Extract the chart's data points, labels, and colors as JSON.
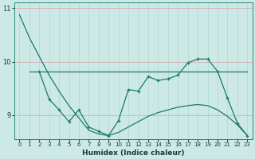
{
  "xlabel": "Humidex (Indice chaleur)",
  "bg_color": "#cce9e5",
  "line_color": "#1a7a6e",
  "vgrid_color": "#aed8d4",
  "hgrid_color": "#d4a8a8",
  "xlim": [
    -0.5,
    23.5
  ],
  "ylim": [
    8.55,
    11.1
  ],
  "yticks": [
    9,
    10,
    11
  ],
  "xticks": [
    0,
    1,
    2,
    3,
    4,
    5,
    6,
    7,
    8,
    9,
    10,
    11,
    12,
    13,
    14,
    15,
    16,
    17,
    18,
    19,
    20,
    21,
    22,
    23
  ],
  "series1_x": [
    0,
    1,
    2,
    3,
    4,
    5,
    6,
    7,
    8,
    9,
    10,
    11,
    12,
    13,
    14,
    15,
    16,
    17,
    18,
    19,
    20,
    21,
    22,
    23
  ],
  "series1_y": [
    10.88,
    10.45,
    10.1,
    9.75,
    9.45,
    9.18,
    8.95,
    8.72,
    8.65,
    8.62,
    8.68,
    8.78,
    8.88,
    8.98,
    9.05,
    9.1,
    9.15,
    9.18,
    9.2,
    9.18,
    9.1,
    8.98,
    8.82,
    8.62
  ],
  "series2_x": [
    1,
    2,
    3,
    4,
    5,
    6,
    7,
    8,
    9,
    10,
    11,
    12,
    13,
    14,
    15,
    16,
    17,
    18,
    19,
    20,
    21,
    22,
    23
  ],
  "series2_y": [
    9.82,
    9.82,
    9.82,
    9.82,
    9.82,
    9.82,
    9.82,
    9.82,
    9.82,
    9.82,
    9.82,
    9.82,
    9.82,
    9.82,
    9.82,
    9.82,
    9.82,
    9.82,
    9.82,
    9.82,
    9.82,
    9.82,
    9.82
  ],
  "series3_x": [
    2,
    3,
    4,
    5,
    6,
    7,
    8,
    9,
    10,
    11,
    12,
    13,
    14,
    15,
    16,
    17,
    18,
    19,
    20,
    21,
    22,
    23
  ],
  "series3_y": [
    9.82,
    9.3,
    9.1,
    8.88,
    9.1,
    8.78,
    8.7,
    8.62,
    8.9,
    9.48,
    9.45,
    9.72,
    9.65,
    9.68,
    9.75,
    9.98,
    10.05,
    10.05,
    9.82,
    9.32,
    8.85,
    8.62
  ]
}
